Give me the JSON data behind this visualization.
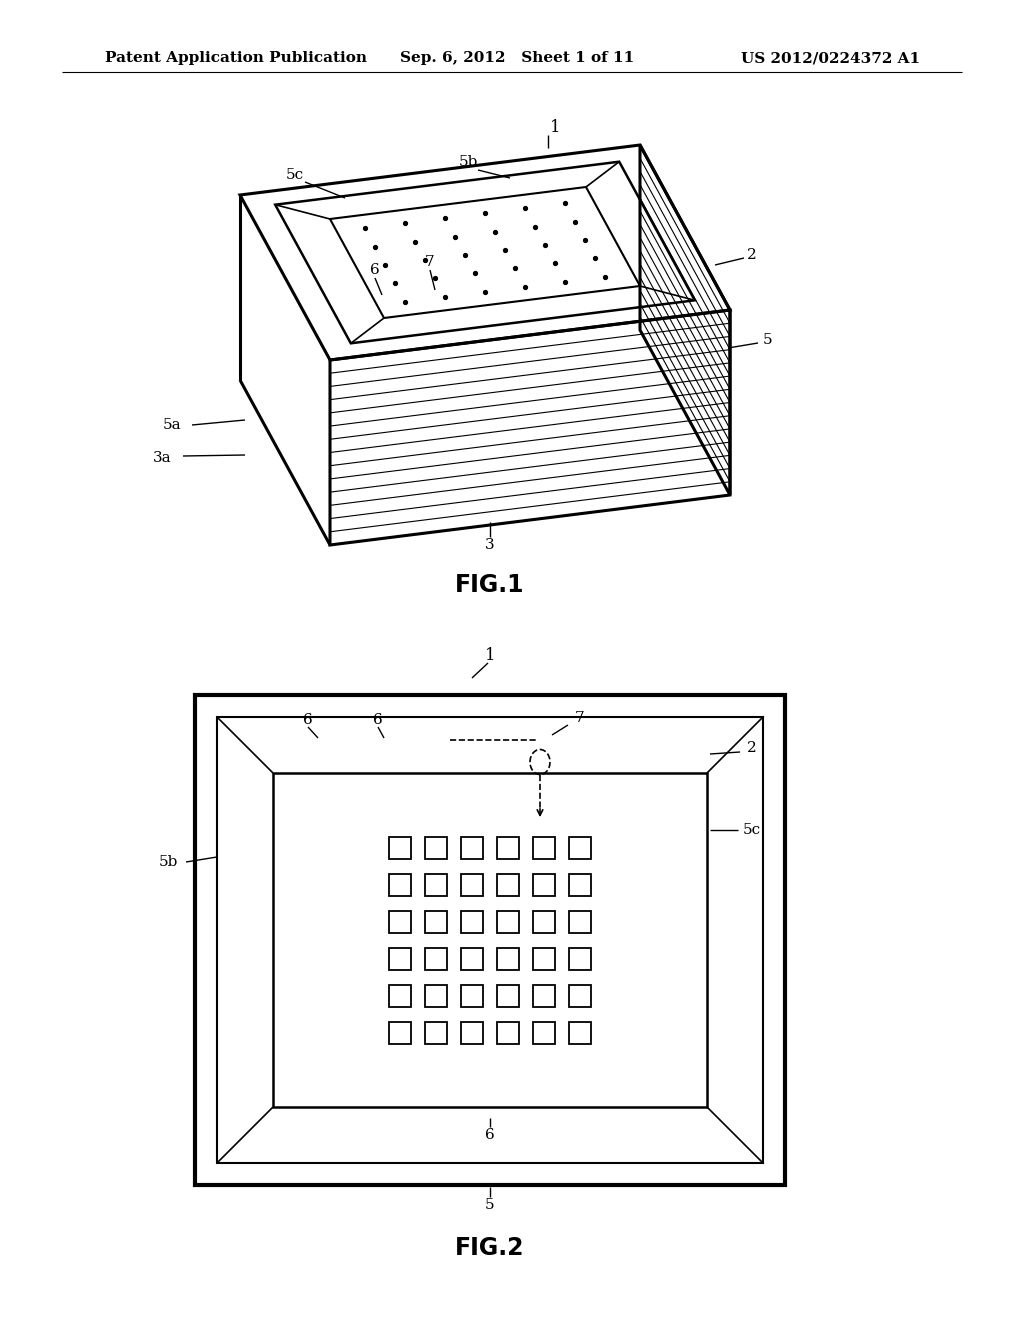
{
  "bg_color": "#ffffff",
  "line_color": "#000000",
  "header_left": "Patent Application Publication",
  "header_mid": "Sep. 6, 2012   Sheet 1 of 11",
  "header_right": "US 2012/0224372 A1",
  "fig1_label": "FIG.1",
  "fig2_label": "FIG.2",
  "fig_width": 10.24,
  "fig_height": 13.2
}
